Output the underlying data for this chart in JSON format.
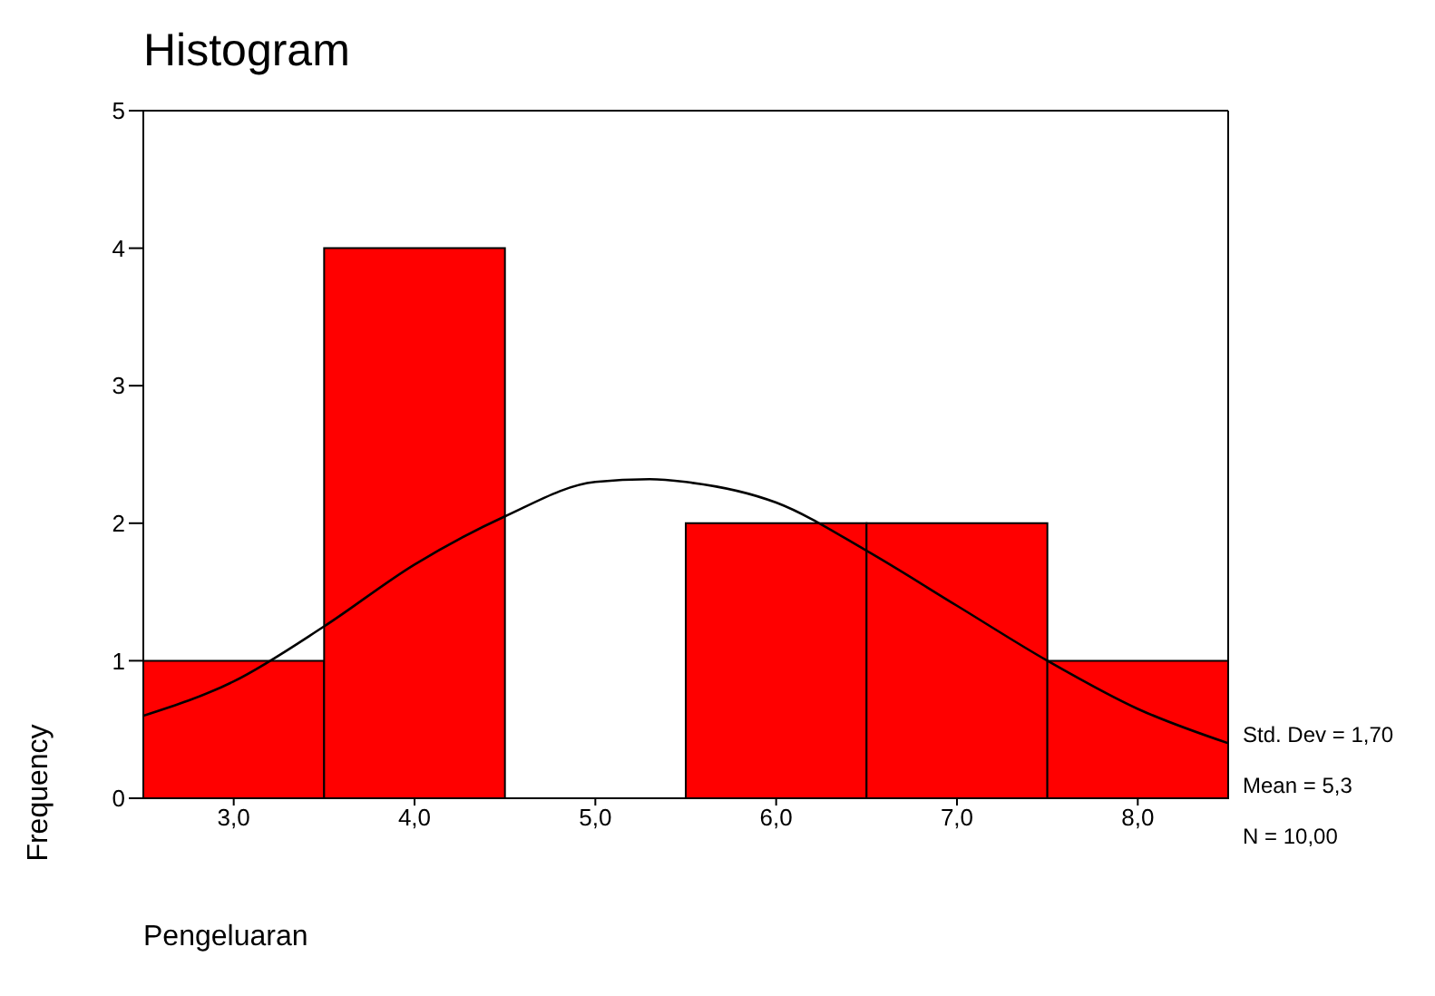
{
  "chart_data": {
    "type": "histogram",
    "title": "Histogram",
    "xlabel": "Pengeluaran",
    "ylabel": "Frequency",
    "bins": [
      2.5,
      3.5,
      4.5,
      5.5,
      6.5,
      7.5,
      8.5
    ],
    "values": [
      1,
      4,
      0,
      2,
      2,
      1
    ],
    "color": "#ff0000",
    "series": [
      {
        "type": "line",
        "color": "#000000",
        "x": [
          2.5,
          3.0,
          3.5,
          4.0,
          4.5,
          5.0,
          5.3,
          5.5,
          6.0,
          6.5,
          7.0,
          7.5,
          8.0,
          8.5
        ],
        "values": [
          0.6,
          0.85,
          1.25,
          1.7,
          2.05,
          2.3,
          2.32,
          2.3,
          2.15,
          1.8,
          1.4,
          1.0,
          0.65,
          0.4
        ]
      }
    ],
    "xlim": [
      2.5,
      8.5
    ],
    "xticks": [
      {
        "value": 3,
        "label": "3,0"
      },
      {
        "value": 4,
        "label": "4,0"
      },
      {
        "value": 5,
        "label": "5,0"
      },
      {
        "value": 6,
        "label": "6,0"
      },
      {
        "value": 7,
        "label": "7,0"
      },
      {
        "value": 8,
        "label": "8,0"
      }
    ],
    "ylim": [
      0,
      5
    ],
    "yticks": [
      0,
      1,
      2,
      3,
      4,
      5
    ],
    "annotations": [
      "Std. Dev = 1,70",
      "Mean = 5,3",
      "N = 10,00"
    ],
    "grid": false,
    "marker": "none",
    "line_style": "solid"
  }
}
